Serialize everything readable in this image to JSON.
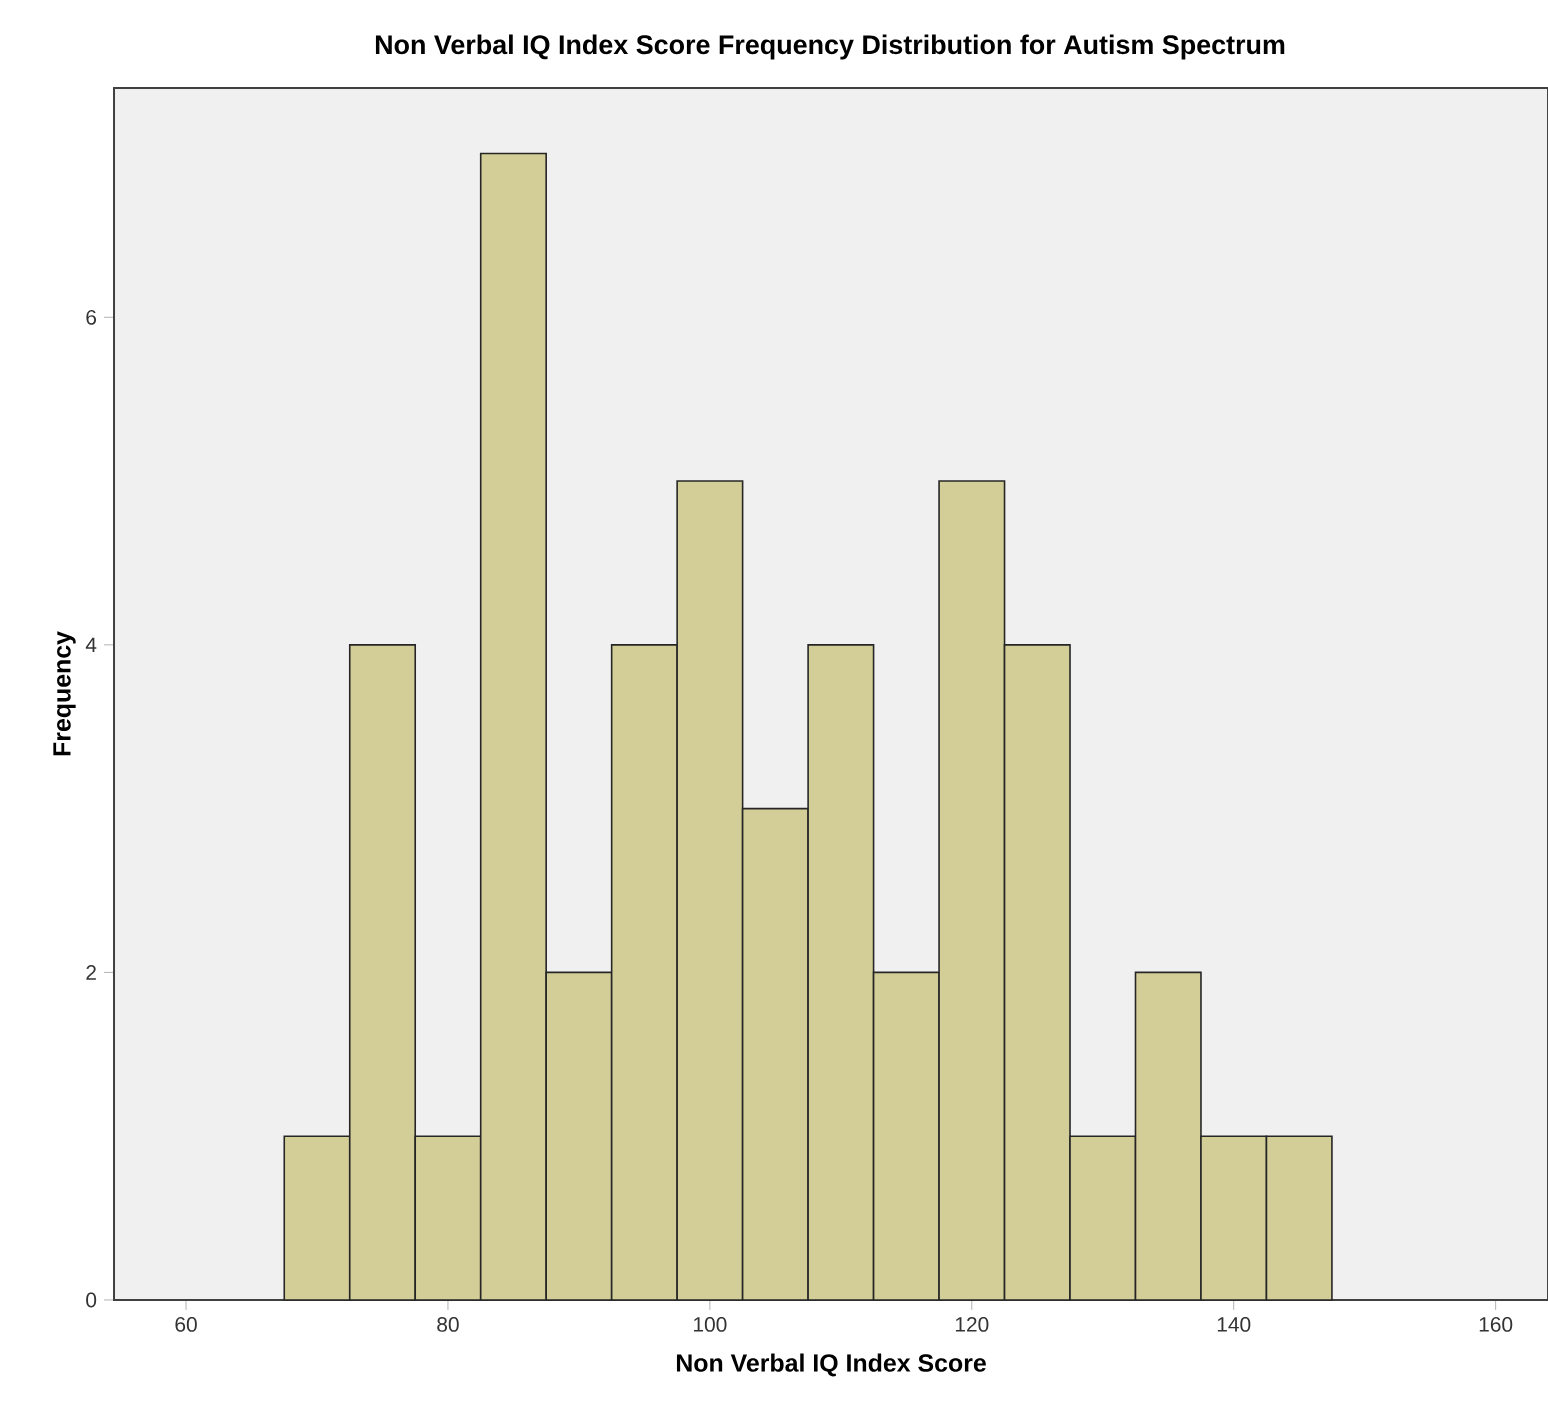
{
  "chart_data": {
    "type": "histogram",
    "title": "Non Verbal IQ Index Score Frequency Distribution for Autism Spectrum",
    "xlabel": "Non Verbal IQ Index Score",
    "ylabel": "Frequency",
    "bins": [
      67.5,
      72.5,
      77.5,
      82.5,
      87.5,
      92.5,
      97.5,
      102.5,
      107.5,
      112.5,
      117.5,
      122.5,
      127.5,
      132.5,
      137.5,
      142.5,
      147.5
    ],
    "values": [
      1,
      4,
      1,
      7,
      2,
      4,
      5,
      3,
      4,
      2,
      5,
      4,
      1,
      2,
      1,
      1
    ],
    "color": "#d3ce98",
    "xlim": [
      54.5,
      164
    ],
    "xticks": [
      60,
      80,
      100,
      120,
      140,
      160
    ],
    "ylim": [
      0,
      7.4
    ],
    "yticks": [
      0,
      2,
      4,
      6
    ],
    "grid": false
  }
}
